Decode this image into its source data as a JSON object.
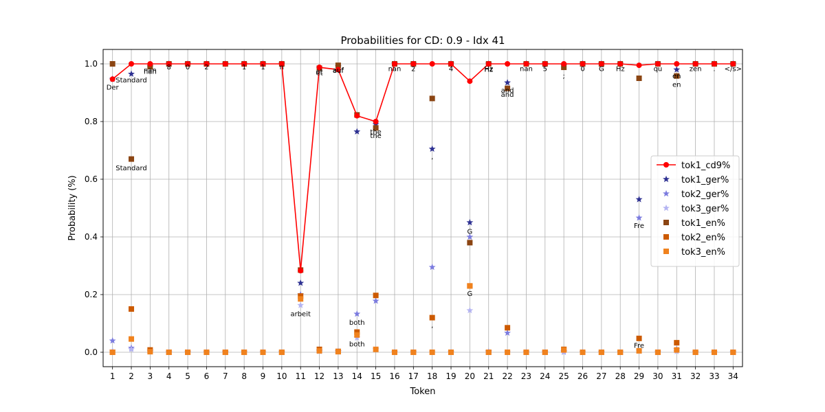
{
  "chart_data": {
    "type": "line",
    "title": "Probabilities for CD: 0.9 - Idx 41",
    "xlabel": "Token",
    "ylabel": "Probability (%)",
    "x": [
      1,
      2,
      3,
      4,
      5,
      6,
      7,
      8,
      9,
      10,
      11,
      12,
      13,
      14,
      15,
      16,
      17,
      18,
      19,
      20,
      21,
      22,
      23,
      24,
      25,
      26,
      27,
      28,
      29,
      30,
      31,
      32,
      33,
      34
    ],
    "xlim": [
      0.5,
      34.5
    ],
    "ylim": [
      -0.05,
      1.05
    ],
    "yticks": [
      0.0,
      0.2,
      0.4,
      0.6,
      0.8,
      1.0
    ],
    "grid": true,
    "legend_position": "center-right",
    "series": [
      {
        "name": "tok1_cd9%",
        "kind": "line",
        "color": "#ff0000",
        "values": [
          0.947,
          1.0,
          1.0,
          1.0,
          1.0,
          1.0,
          1.0,
          1.0,
          1.0,
          1.0,
          0.283,
          0.988,
          0.98,
          0.82,
          0.8,
          1.0,
          1.0,
          1.0,
          1.0,
          0.94,
          1.0,
          1.0,
          1.0,
          1.0,
          1.0,
          1.0,
          1.0,
          1.0,
          0.995,
          1.0,
          1.0,
          1.0,
          1.0,
          1.0
        ]
      },
      {
        "name": "tok1_ger%",
        "kind": "star",
        "color": "#2e3192",
        "values": [
          0.947,
          0.965,
          0.99,
          1.0,
          1.0,
          1.0,
          1.0,
          1.0,
          1.0,
          1.0,
          0.24,
          0.985,
          0.99,
          0.765,
          0.79,
          1.0,
          1.0,
          0.705,
          1.0,
          0.45,
          1.0,
          0.935,
          1.0,
          1.0,
          0.995,
          1.0,
          1.0,
          1.0,
          0.53,
          1.0,
          0.98,
          1.0,
          1.0,
          1.0
        ]
      },
      {
        "name": "tok2_ger%",
        "kind": "star",
        "color": "#7b7bdf",
        "values": [
          0.04,
          0.015,
          0.005,
          0.0,
          0.0,
          0.0,
          0.0,
          0.0,
          0.0,
          0.0,
          0.2,
          0.005,
          0.003,
          0.133,
          0.178,
          0.0,
          0.0,
          0.295,
          0.0,
          0.4,
          0.002,
          0.067,
          0.0,
          0.0,
          0.003,
          0.0,
          0.0,
          0.0,
          0.466,
          0.0,
          0.01,
          0.0,
          0.0,
          0.0
        ]
      },
      {
        "name": "tok3_ger%",
        "kind": "star",
        "color": "#b4b4f2",
        "values": [
          0.005,
          0.01,
          0.003,
          0.0,
          0.0,
          0.0,
          0.0,
          0.0,
          0.0,
          0.0,
          0.163,
          0.003,
          0.002,
          0.05,
          0.01,
          0.0,
          0.0,
          0.0,
          0.0,
          0.145,
          0.0,
          0.0,
          0.0,
          0.0,
          0.0,
          0.0,
          0.0,
          0.0,
          0.004,
          0.0,
          0.003,
          0.0,
          0.0,
          0.0
        ]
      },
      {
        "name": "tok1_en%",
        "kind": "square",
        "color": "#8b4513",
        "values": [
          1.0,
          0.67,
          0.99,
          1.0,
          1.0,
          1.0,
          1.0,
          1.0,
          1.0,
          1.0,
          0.285,
          0.985,
          0.995,
          0.823,
          0.778,
          1.0,
          1.0,
          0.88,
          1.0,
          0.38,
          1.0,
          0.915,
          1.0,
          1.0,
          0.988,
          1.0,
          1.0,
          1.0,
          0.95,
          1.0,
          0.958,
          1.0,
          1.0,
          1.0
        ]
      },
      {
        "name": "tok2_en%",
        "kind": "square",
        "color": "#cc5a00",
        "values": [
          0.0,
          0.15,
          0.008,
          0.0,
          0.0,
          0.0,
          0.0,
          0.0,
          0.0,
          0.0,
          0.195,
          0.01,
          0.003,
          0.07,
          0.197,
          0.0,
          0.0,
          0.12,
          0.0,
          0.23,
          0.0,
          0.085,
          0.0,
          0.0,
          0.01,
          0.0,
          0.0,
          0.0,
          0.048,
          0.0,
          0.033,
          0.0,
          0.0,
          0.0
        ]
      },
      {
        "name": "tok3_en%",
        "kind": "square",
        "color": "#f0821e",
        "values": [
          0.0,
          0.046,
          0.002,
          0.0,
          0.0,
          0.0,
          0.0,
          0.0,
          0.0,
          0.0,
          0.185,
          0.005,
          0.002,
          0.06,
          0.01,
          0.0,
          0.0,
          0.0,
          0.0,
          0.23,
          0.0,
          0.0,
          0.0,
          0.0,
          0.008,
          0.0,
          0.0,
          0.0,
          0.005,
          0.0,
          0.008,
          0.0,
          0.0,
          0.0
        ]
      }
    ],
    "annotations": [
      {
        "x": 1,
        "y": 0.92,
        "text": "Der"
      },
      {
        "x": 2,
        "y": 0.945,
        "text": "Standard"
      },
      {
        "x": 2,
        "y": 0.64,
        "text": "Standard"
      },
      {
        "x": 3,
        "y": 0.98,
        "text": "nan"
      },
      {
        "x": 3,
        "y": 0.975,
        "text": "nan"
      },
      {
        "x": 4,
        "y": 0.99,
        "text": "8"
      },
      {
        "x": 5,
        "y": 0.99,
        "text": "0"
      },
      {
        "x": 6,
        "y": 0.99,
        "text": "2"
      },
      {
        "x": 7,
        "y": 0.99,
        "text": "."
      },
      {
        "x": 8,
        "y": 0.99,
        "text": "1"
      },
      {
        "x": 9,
        "y": 0.99,
        "text": "1"
      },
      {
        "x": 10,
        "y": 0.99,
        "text": "n"
      },
      {
        "x": 11,
        "y": 0.135,
        "text": "arbeit"
      },
      {
        "x": 12,
        "y": 0.975,
        "text": "et"
      },
      {
        "x": 12,
        "y": 0.97,
        "text": "et"
      },
      {
        "x": 13,
        "y": 0.98,
        "text": "auf"
      },
      {
        "x": 13,
        "y": 0.978,
        "text": "auf"
      },
      {
        "x": 14,
        "y": 0.105,
        "text": "both"
      },
      {
        "x": 14,
        "y": 0.03,
        "text": "both"
      },
      {
        "x": 15,
        "y": 0.765,
        "text": "the"
      },
      {
        "x": 15,
        "y": 0.752,
        "text": "the"
      },
      {
        "x": 16,
        "y": 0.985,
        "text": "nan"
      },
      {
        "x": 17,
        "y": 0.985,
        "text": "2"
      },
      {
        "x": 18,
        "y": 0.68,
        "text": ","
      },
      {
        "x": 18,
        "y": 0.095,
        "text": ","
      },
      {
        "x": 19,
        "y": 0.985,
        "text": "4"
      },
      {
        "x": 20,
        "y": 0.42,
        "text": "G"
      },
      {
        "x": 20,
        "y": 0.205,
        "text": "G"
      },
      {
        "x": 21,
        "y": 0.985,
        "text": "Hz"
      },
      {
        "x": 21,
        "y": 0.982,
        "text": "Hz"
      },
      {
        "x": 22,
        "y": 0.91,
        "text": "and"
      },
      {
        "x": 22,
        "y": 0.895,
        "text": "and"
      },
      {
        "x": 23,
        "y": 0.985,
        "text": "nan"
      },
      {
        "x": 24,
        "y": 0.985,
        "text": "5"
      },
      {
        "x": 25,
        "y": 0.96,
        "text": ";"
      },
      {
        "x": 26,
        "y": 0.985,
        "text": "0"
      },
      {
        "x": 27,
        "y": 0.985,
        "text": "G"
      },
      {
        "x": 28,
        "y": 0.985,
        "text": "Hz"
      },
      {
        "x": 29,
        "y": 0.44,
        "text": "Fre"
      },
      {
        "x": 29,
        "y": 0.025,
        "text": "Fre"
      },
      {
        "x": 30,
        "y": 0.985,
        "text": "qu"
      },
      {
        "x": 31,
        "y": 0.96,
        "text": "en"
      },
      {
        "x": 31,
        "y": 0.93,
        "text": "en"
      },
      {
        "x": 32,
        "y": 0.985,
        "text": "zen"
      },
      {
        "x": 33,
        "y": 0.985,
        "text": "."
      },
      {
        "x": 34,
        "y": 0.985,
        "text": "</s>"
      }
    ]
  }
}
